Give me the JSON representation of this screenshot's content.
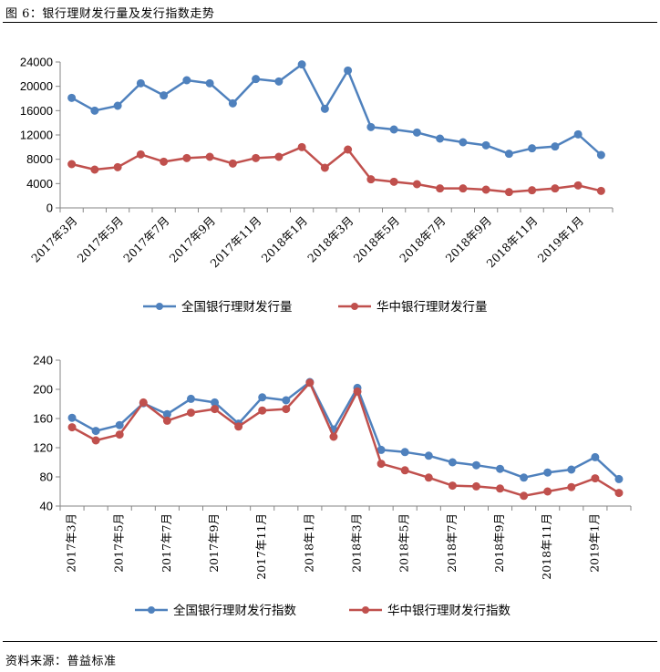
{
  "figure_title": "图 6：银行理财发行量及发行指数走势",
  "source": "资料来源：普益标准",
  "colors": {
    "national": "#4F81BD",
    "central": "#C0504D",
    "axis": "#868686"
  },
  "chart_data": [
    {
      "type": "line",
      "title": "",
      "ylim": [
        0,
        24000
      ],
      "yticks": [
        0,
        4000,
        8000,
        12000,
        16000,
        20000,
        24000
      ],
      "categories": [
        "2017年3月",
        "2017年4月",
        "2017年5月",
        "2017年6月",
        "2017年7月",
        "2017年8月",
        "2017年9月",
        "2017年10月",
        "2017年11月",
        "2017年12月",
        "2018年1月",
        "2018年2月",
        "2018年3月",
        "2018年4月",
        "2018年5月",
        "2018年6月",
        "2018年7月",
        "2018年8月",
        "2018年9月",
        "2018年10月",
        "2018年11月",
        "2018年12月",
        "2019年1月",
        "2019年2月"
      ],
      "tick_labels": [
        "2017年3月",
        "2017年5月",
        "2017年7月",
        "2017年9月",
        "2017年11月",
        "2018年1月",
        "2018年3月",
        "2018年5月",
        "2018年7月",
        "2018年9月",
        "2018年11月",
        "2019年1月"
      ],
      "series": [
        {
          "name": "全国银行理财发行量",
          "color": "#4F81BD",
          "values": [
            18100,
            16000,
            16800,
            20500,
            18500,
            21000,
            20500,
            17200,
            21200,
            20800,
            23600,
            16300,
            22600,
            13300,
            12900,
            12400,
            11400,
            10800,
            10300,
            8900,
            9800,
            10100,
            12100,
            8700
          ]
        },
        {
          "name": "华中银行理财发行量",
          "color": "#C0504D",
          "values": [
            7200,
            6300,
            6700,
            8800,
            7600,
            8200,
            8400,
            7300,
            8200,
            8400,
            10000,
            6600,
            9600,
            4700,
            4300,
            3900,
            3200,
            3200,
            3000,
            2600,
            2900,
            3200,
            3700,
            2800
          ]
        }
      ]
    },
    {
      "type": "line",
      "title": "",
      "ylim": [
        40,
        240
      ],
      "yticks": [
        40,
        80,
        120,
        160,
        200,
        240
      ],
      "categories": [
        "2017年3月",
        "2017年4月",
        "2017年5月",
        "2017年6月",
        "2017年7月",
        "2017年8月",
        "2017年9月",
        "2017年10月",
        "2017年11月",
        "2017年12月",
        "2018年1月",
        "2018年2月",
        "2018年3月",
        "2018年4月",
        "2018年5月",
        "2018年6月",
        "2018年7月",
        "2018年8月",
        "2018年9月",
        "2018年10月",
        "2018年11月",
        "2018年12月",
        "2019年1月",
        "2019年2月"
      ],
      "tick_labels": [
        "2017年3月",
        "2017年5月",
        "2017年7月",
        "2017年9月",
        "2017年11月",
        "2018年1月",
        "2018年3月",
        "2018年5月",
        "2018年7月",
        "2018年9月",
        "2018年11月",
        "2019年1月"
      ],
      "series": [
        {
          "name": "全国银行理财发行指数",
          "color": "#4F81BD",
          "values": [
            161,
            143,
            151,
            181,
            166,
            187,
            182,
            153,
            189,
            185,
            210,
            145,
            202,
            117,
            114,
            109,
            100,
            96,
            91,
            79,
            86,
            90,
            107,
            77
          ]
        },
        {
          "name": "华中银行理财发行指数",
          "color": "#C0504D",
          "values": [
            148,
            130,
            138,
            182,
            157,
            168,
            173,
            149,
            171,
            173,
            209,
            135,
            197,
            98,
            89,
            79,
            68,
            67,
            64,
            54,
            60,
            66,
            78,
            58
          ]
        }
      ]
    }
  ]
}
